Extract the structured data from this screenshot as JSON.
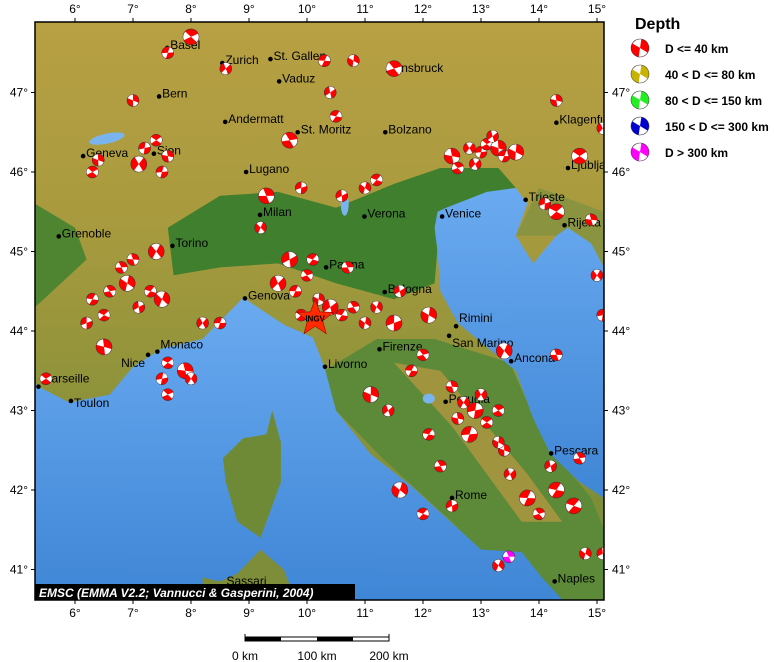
{
  "map": {
    "credit": "EMSC (EMMA V2.2; Vannucci & Gasperini, 2004)",
    "lon_range": [
      5.31,
      15.12
    ],
    "lat_range": [
      40.62,
      47.89
    ],
    "lon_ticks": [
      6,
      7,
      8,
      9,
      10,
      11,
      12,
      13,
      14,
      15
    ],
    "lat_ticks": [
      41,
      42,
      43,
      44,
      45,
      46,
      47
    ],
    "colors": {
      "sea": "#5a9be0",
      "land_high": "#b49c40",
      "land_low": "#3f7f2e",
      "beachball_white": "#ffffff"
    },
    "marker": {
      "label": "INGV",
      "lon": 10.14,
      "lat": 44.16,
      "color": "#ff2a00"
    },
    "cities": [
      {
        "name": "Basel",
        "lon": 7.59,
        "lat": 47.56
      },
      {
        "name": "Zurich",
        "lon": 8.54,
        "lat": 47.37
      },
      {
        "name": "St. Gallen",
        "lon": 9.37,
        "lat": 47.42
      },
      {
        "name": "Vaduz",
        "lon": 9.52,
        "lat": 47.14
      },
      {
        "name": "Innsbruck",
        "lon": 11.4,
        "lat": 47.27
      },
      {
        "name": "Bern",
        "lon": 7.45,
        "lat": 46.95
      },
      {
        "name": "Andermatt",
        "lon": 8.59,
        "lat": 46.63
      },
      {
        "name": "St. Moritz",
        "lon": 9.84,
        "lat": 46.5
      },
      {
        "name": "Bolzano",
        "lon": 11.35,
        "lat": 46.5
      },
      {
        "name": "Klagenfurt",
        "lon": 14.3,
        "lat": 46.62
      },
      {
        "name": "Geneva",
        "lon": 6.14,
        "lat": 46.2
      },
      {
        "name": "Sion",
        "lon": 7.36,
        "lat": 46.23
      },
      {
        "name": "Lugano",
        "lon": 8.95,
        "lat": 46.0
      },
      {
        "name": "Ljubljana",
        "lon": 14.5,
        "lat": 46.05
      },
      {
        "name": "Trieste",
        "lon": 13.77,
        "lat": 45.65
      },
      {
        "name": "Milan",
        "lon": 9.19,
        "lat": 45.46
      },
      {
        "name": "Verona",
        "lon": 10.99,
        "lat": 45.44
      },
      {
        "name": "Venice",
        "lon": 12.33,
        "lat": 45.44
      },
      {
        "name": "Rijeka",
        "lon": 14.44,
        "lat": 45.33
      },
      {
        "name": "Grenoble",
        "lon": 5.72,
        "lat": 45.19
      },
      {
        "name": "Torino",
        "lon": 7.68,
        "lat": 45.07
      },
      {
        "name": "Parma",
        "lon": 10.33,
        "lat": 44.8
      },
      {
        "name": "Bologna",
        "lon": 11.34,
        "lat": 44.49
      },
      {
        "name": "Genova",
        "lon": 8.93,
        "lat": 44.41
      },
      {
        "name": "Rimini",
        "lon": 12.57,
        "lat": 44.06
      },
      {
        "name": "San Marino",
        "lon": 12.45,
        "lat": 43.94
      },
      {
        "name": "Monaco",
        "lon": 7.42,
        "lat": 43.74
      },
      {
        "name": "Nice",
        "lon": 7.26,
        "lat": 43.7
      },
      {
        "name": "Ancona",
        "lon": 13.52,
        "lat": 43.62
      },
      {
        "name": "Firenze",
        "lon": 11.25,
        "lat": 43.77
      },
      {
        "name": "Livorno",
        "lon": 10.31,
        "lat": 43.55
      },
      {
        "name": "Marseille",
        "lon": 5.37,
        "lat": 43.3
      },
      {
        "name": "Toulon",
        "lon": 5.93,
        "lat": 43.12
      },
      {
        "name": "Perugia",
        "lon": 12.39,
        "lat": 43.11
      },
      {
        "name": "Pescara",
        "lon": 14.21,
        "lat": 42.46
      },
      {
        "name": "Rome",
        "lon": 12.5,
        "lat": 41.9
      },
      {
        "name": "Naples",
        "lon": 14.27,
        "lat": 40.85
      },
      {
        "name": "Sassari",
        "lon": 8.56,
        "lat": 40.73
      }
    ],
    "events": [
      [
        12.5,
        46.2,
        0
      ],
      [
        12.8,
        46.3,
        0
      ],
      [
        13.0,
        46.25,
        0
      ],
      [
        13.1,
        46.35,
        0
      ],
      [
        13.3,
        46.3,
        0
      ],
      [
        12.9,
        46.1,
        0
      ],
      [
        13.4,
        46.2,
        0
      ],
      [
        12.6,
        46.05,
        0
      ],
      [
        13.6,
        46.25,
        0
      ],
      [
        13.2,
        46.45,
        0
      ],
      [
        6.3,
        44.4,
        0
      ],
      [
        6.6,
        44.5,
        0
      ],
      [
        6.9,
        44.6,
        0
      ],
      [
        7.1,
        44.3,
        0
      ],
      [
        7.3,
        44.5,
        0
      ],
      [
        6.8,
        44.8,
        0
      ],
      [
        7.5,
        44.4,
        0
      ],
      [
        6.2,
        44.1,
        0
      ],
      [
        6.5,
        44.2,
        0
      ],
      [
        7.0,
        44.9,
        0
      ],
      [
        7.4,
        45.0,
        0
      ],
      [
        7.2,
        46.3,
        0
      ],
      [
        7.4,
        46.4,
        0
      ],
      [
        7.6,
        46.2,
        0
      ],
      [
        7.1,
        46.1,
        0
      ],
      [
        7.5,
        46.0,
        0
      ],
      [
        6.3,
        46.0,
        0
      ],
      [
        6.4,
        46.15,
        0
      ],
      [
        9.5,
        44.6,
        0
      ],
      [
        9.8,
        44.5,
        0
      ],
      [
        10.0,
        44.7,
        0
      ],
      [
        10.2,
        44.4,
        0
      ],
      [
        10.4,
        44.3,
        0
      ],
      [
        10.6,
        44.2,
        0
      ],
      [
        10.8,
        44.3,
        0
      ],
      [
        11.0,
        44.1,
        0
      ],
      [
        9.7,
        44.9,
        0
      ],
      [
        10.1,
        44.9,
        0
      ],
      [
        10.7,
        44.8,
        0
      ],
      [
        11.2,
        44.3,
        0
      ],
      [
        11.5,
        44.1,
        0
      ],
      [
        9.9,
        44.2,
        0
      ],
      [
        12.5,
        43.3,
        0
      ],
      [
        12.7,
        43.1,
        0
      ],
      [
        12.9,
        43.0,
        0
      ],
      [
        13.1,
        42.85,
        0
      ],
      [
        12.6,
        42.9,
        0
      ],
      [
        13.0,
        43.2,
        0
      ],
      [
        12.8,
        42.7,
        0
      ],
      [
        13.3,
        43.0,
        0
      ],
      [
        13.4,
        42.5,
        0
      ],
      [
        13.5,
        42.2,
        0
      ],
      [
        13.8,
        41.9,
        0
      ],
      [
        14.0,
        41.7,
        0
      ],
      [
        13.3,
        42.6,
        0
      ],
      [
        14.2,
        42.3,
        0
      ],
      [
        14.3,
        42.0,
        0
      ],
      [
        14.7,
        42.4,
        0
      ],
      [
        14.8,
        41.2,
        0
      ],
      [
        15.1,
        41.2,
        0
      ],
      [
        14.6,
        41.8,
        0
      ],
      [
        13.48,
        41.16,
        4
      ],
      [
        13.3,
        41.05,
        0
      ],
      [
        14.1,
        45.6,
        0
      ],
      [
        14.3,
        45.5,
        0
      ],
      [
        14.9,
        45.4,
        0
      ],
      [
        15.0,
        44.7,
        0
      ],
      [
        15.1,
        44.2,
        0
      ],
      [
        14.7,
        46.2,
        0
      ],
      [
        14.3,
        46.9,
        0
      ],
      [
        15.1,
        46.55,
        0
      ],
      [
        7.6,
        47.5,
        0
      ],
      [
        8.0,
        47.7,
        0
      ],
      [
        7.0,
        46.9,
        0
      ],
      [
        8.6,
        47.3,
        0
      ],
      [
        10.3,
        47.4,
        0
      ],
      [
        11.5,
        47.3,
        0
      ],
      [
        10.8,
        47.4,
        0
      ],
      [
        10.4,
        47.0,
        0
      ],
      [
        10.5,
        46.7,
        0
      ],
      [
        9.7,
        46.4,
        0
      ],
      [
        11.0,
        45.8,
        0
      ],
      [
        10.6,
        45.7,
        0
      ],
      [
        11.2,
        45.9,
        0
      ],
      [
        9.3,
        45.7,
        0
      ],
      [
        9.2,
        45.3,
        0
      ],
      [
        9.9,
        45.8,
        0
      ],
      [
        7.6,
        43.6,
        0
      ],
      [
        7.9,
        43.5,
        0
      ],
      [
        8.0,
        43.4,
        0
      ],
      [
        7.5,
        43.4,
        0
      ],
      [
        5.5,
        43.4,
        0
      ],
      [
        6.5,
        43.8,
        0
      ],
      [
        8.2,
        44.1,
        0
      ],
      [
        8.5,
        44.1,
        0
      ],
      [
        7.6,
        43.2,
        0
      ],
      [
        11.1,
        43.2,
        0
      ],
      [
        11.4,
        43.0,
        0
      ],
      [
        11.8,
        43.5,
        0
      ],
      [
        12.0,
        43.7,
        0
      ],
      [
        12.1,
        44.2,
        0
      ],
      [
        11.6,
        44.5,
        0
      ],
      [
        12.1,
        42.7,
        0
      ],
      [
        12.3,
        42.3,
        0
      ],
      [
        11.6,
        42.0,
        0
      ],
      [
        12.5,
        41.8,
        0
      ],
      [
        12.0,
        41.7,
        0
      ],
      [
        14.3,
        43.7,
        0
      ],
      [
        13.4,
        43.75,
        0
      ]
    ]
  },
  "legend": {
    "title": "Depth",
    "items": [
      {
        "label": "D <= 40 km",
        "color": "#ff0000"
      },
      {
        "label": "40 < D <= 80 km",
        "color": "#c8b400"
      },
      {
        "label": "80 < D <= 150 km",
        "color": "#22ee22"
      },
      {
        "label": "150 < D <= 300 km",
        "color": "#0000d0"
      },
      {
        "label": "D > 300 km",
        "color": "#ff00ff"
      }
    ]
  },
  "scale_bar": {
    "labels": [
      "0 km",
      "100 km",
      "200 km"
    ]
  }
}
